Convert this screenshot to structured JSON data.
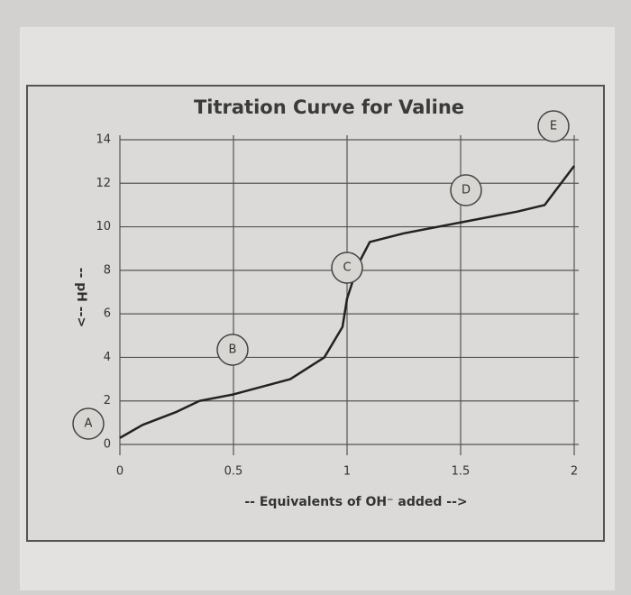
{
  "chart_data": {
    "type": "line",
    "title": "Titration Curve for Valine",
    "x_label": "-- Equivalents of OH⁻ added -->",
    "y_label": "-- pH -->",
    "x": [
      0,
      0.1,
      0.25,
      0.35,
      0.5,
      0.75,
      0.9,
      0.98,
      1.0,
      1.05,
      1.1,
      1.25,
      1.5,
      1.75,
      1.87,
      2.0
    ],
    "series": [
      {
        "name": "Valine",
        "color": "#222222",
        "values": [
          0.3,
          0.9,
          1.5,
          2.0,
          2.3,
          3.0,
          4.0,
          5.4,
          6.7,
          8.3,
          9.3,
          9.7,
          10.2,
          10.7,
          11.0,
          12.8
        ]
      }
    ],
    "xlim": [
      0,
      2
    ],
    "ylim": [
      0,
      14
    ],
    "xticks": [
      0,
      0.5,
      1,
      1.5,
      2
    ],
    "yticks": [
      0,
      2,
      4,
      6,
      8,
      10,
      12,
      14
    ],
    "grid": true,
    "annotations": [
      "A",
      "B",
      "C",
      "D",
      "E"
    ]
  }
}
